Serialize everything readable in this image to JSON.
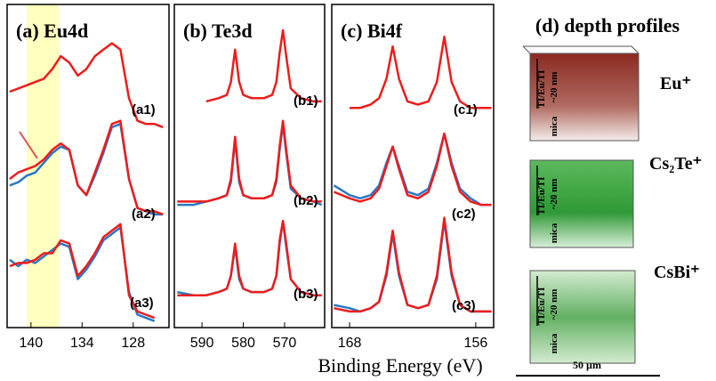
{
  "x_label": "Binding Energy (eV)",
  "chart_data": [
    {
      "type": "line",
      "title": "(a) Eu4d",
      "xlim": [
        142.8,
        123.8
      ],
      "xticks": [
        140,
        134,
        128
      ],
      "ylim": [
        0,
        100
      ],
      "shaded_range": [
        140.5,
        136.7
      ],
      "shaded_color": "#ffffbf",
      "annotations": [
        "(a1)",
        "(a2)",
        "(a3)"
      ],
      "x": [
        142.5,
        141.5,
        140.5,
        139.5,
        138.5,
        137.5,
        136.5,
        135.5,
        134.5,
        133.5,
        132.5,
        131.5,
        130.5,
        129.5,
        128.5,
        127.5,
        126.5,
        125.5,
        124.5
      ],
      "series": [
        {
          "color": "#ee1c1c",
          "values": [
            73,
            74,
            75,
            76,
            77,
            80,
            84,
            82,
            78,
            80,
            84,
            86,
            88,
            86,
            71,
            64,
            63,
            63,
            62
          ]
        },
        {
          "color": "#2a78c4",
          "values": [
            44,
            45,
            47,
            48,
            51,
            54,
            56,
            55,
            44,
            41,
            47,
            54,
            62,
            63,
            46,
            37,
            36,
            35,
            35
          ]
        },
        {
          "color": "#ee1c1c",
          "values": [
            46,
            48,
            49,
            50,
            52,
            55,
            57,
            55,
            44,
            41,
            48,
            55,
            63,
            64,
            46,
            37,
            36,
            36,
            35
          ]
        },
        {
          "color": "#2a78c4",
          "values": [
            21,
            19,
            21,
            20,
            22,
            24,
            26,
            25,
            15,
            18,
            22,
            27,
            29,
            31,
            11,
            4,
            3,
            2,
            null
          ]
        },
        {
          "color": "#ee1c1c",
          "values": [
            19,
            20,
            20,
            21,
            23,
            23,
            27,
            26,
            16,
            19,
            23,
            28,
            30,
            32,
            10,
            5,
            4,
            3,
            null
          ]
        }
      ]
    },
    {
      "type": "line",
      "title": "(b) Te3d",
      "xlim": [
        596.7,
        560.3
      ],
      "xticks": [
        590,
        580,
        570
      ],
      "ylim": [
        0,
        100
      ],
      "annotations": [
        "(b1)",
        "(b2)",
        "(b3)"
      ],
      "x": [
        596,
        592,
        589,
        586,
        584,
        583,
        582,
        581,
        580,
        578,
        575,
        573,
        572,
        571.2,
        570.4,
        569.6,
        568.5,
        566,
        563,
        561
      ],
      "series": [
        {
          "color": "#ee1c1c",
          "values": [
            null,
            null,
            70,
            71,
            72,
            76,
            86,
            76,
            72,
            71,
            71,
            72,
            76,
            85,
            92,
            84,
            74,
            71,
            70,
            70
          ]
        },
        {
          "color": "#2a78c4",
          "values": [
            38,
            38,
            39,
            40,
            41,
            45,
            58,
            45,
            41,
            40,
            40,
            41,
            45,
            55,
            63,
            54,
            43,
            40,
            39,
            38
          ]
        },
        {
          "color": "#ee1c1c",
          "values": [
            39,
            39,
            39,
            40,
            41,
            46,
            59,
            46,
            41,
            40,
            40,
            41,
            46,
            56,
            64,
            55,
            44,
            40,
            39,
            39
          ]
        },
        {
          "color": "#2a78c4",
          "values": [
            11,
            10,
            10,
            11,
            12,
            16,
            25,
            15,
            12,
            11,
            11,
            12,
            16,
            26,
            33,
            25,
            15,
            11,
            10,
            10
          ]
        },
        {
          "color": "#ee1c1c",
          "values": [
            10,
            10,
            10,
            11,
            12,
            16,
            26,
            16,
            12,
            11,
            11,
            12,
            16,
            27,
            33,
            26,
            15,
            11,
            10,
            10
          ]
        }
      ]
    },
    {
      "type": "line",
      "title": "(c) Bi4f",
      "xlim": [
        169.7,
        154.3
      ],
      "xticks": [
        168,
        156
      ],
      "ylim": [
        0,
        100
      ],
      "annotations": [
        "(c1)",
        "(c2)",
        "(c3)"
      ],
      "x": [
        169.5,
        168,
        167,
        166,
        165.2,
        164.5,
        163.9,
        163.3,
        162.5,
        161.5,
        160.5,
        159.7,
        159.0,
        158.3,
        157.5,
        156.5,
        155.5,
        154.5
      ],
      "series": [
        {
          "color": "#ee1c1c",
          "values": [
            null,
            68,
            68,
            69,
            71,
            77,
            87,
            77,
            70,
            69,
            70,
            76,
            90,
            76,
            70,
            68,
            68,
            68
          ]
        },
        {
          "color": "#2a78c4",
          "values": [
            44,
            41,
            40,
            41,
            44,
            51,
            56,
            50,
            42,
            41,
            43,
            51,
            60,
            51,
            43,
            40,
            38,
            38
          ]
        },
        {
          "color": "#ee1c1c",
          "values": [
            42,
            40,
            39,
            40,
            43,
            50,
            56,
            49,
            41,
            40,
            42,
            50,
            60,
            50,
            42,
            39,
            38,
            38
          ]
        },
        {
          "color": "#2a78c4",
          "values": [
            7,
            6,
            5,
            6,
            8,
            16,
            29,
            16,
            7,
            6,
            7,
            15,
            33,
            16,
            7,
            5,
            5,
            5
          ]
        },
        {
          "color": "#ee1c1c",
          "values": [
            6,
            5,
            5,
            6,
            8,
            17,
            30,
            17,
            7,
            6,
            7,
            16,
            34,
            17,
            7,
            5,
            5,
            5
          ]
        }
      ]
    }
  ],
  "panel_d": {
    "title": "(d) depth profiles",
    "ions": [
      "Eu⁺",
      "Cs₂Te⁺",
      "CsBi⁺"
    ],
    "layer": "TI/Eu/TI",
    "thickness": "~20 nm",
    "substrate": "mica",
    "scale_bar": "50 µm"
  }
}
